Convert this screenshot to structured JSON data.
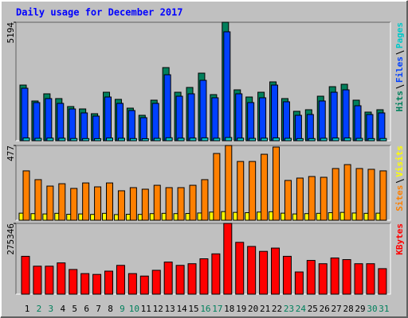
{
  "chart_data": [
    {
      "type": "bar",
      "title": "Daily usage for December 2017",
      "ylim": [
        0,
        5194
      ],
      "yticks": [
        5194
      ],
      "series": [
        {
          "name": "Hits",
          "color": "#00805c",
          "values": [
            2440,
            1743,
            2057,
            1848,
            1499,
            1394,
            1185,
            2126,
            1813,
            1429,
            1115,
            1778,
            3207,
            2126,
            2336,
            2963,
            2022,
            5194,
            2231,
            1917,
            2126,
            2580,
            1848,
            1290,
            1359,
            1952,
            2370,
            2475,
            1778,
            1255,
            1359
          ]
        },
        {
          "name": "Files",
          "color": "#0040ff",
          "values": [
            2301,
            1673,
            1848,
            1638,
            1394,
            1220,
            1081,
            1917,
            1638,
            1325,
            1011,
            1638,
            2893,
            1952,
            2057,
            2649,
            1883,
            4776,
            2057,
            1673,
            1883,
            2440,
            1708,
            1115,
            1150,
            1743,
            2126,
            2231,
            1534,
            1150,
            1220
          ]
        },
        {
          "name": "Pages",
          "color": "#00c8c8",
          "values": [
            120,
            105,
            115,
            110,
            98,
            95,
            92,
            118,
            108,
            96,
            90,
            104,
            130,
            112,
            116,
            125,
            110,
            140,
            114,
            104,
            112,
            122,
            106,
            94,
            96,
            108,
            118,
            120,
            104,
            95,
            98
          ]
        }
      ]
    },
    {
      "type": "bar",
      "ylim": [
        0,
        477
      ],
      "yticks": [
        477
      ],
      "series": [
        {
          "name": "Sites",
          "color": "#ff8000",
          "values": [
            315,
            259,
            218,
            233,
            203,
            238,
            213,
            238,
            188,
            208,
            198,
            223,
            208,
            208,
            223,
            259,
            426,
            477,
            375,
            375,
            421,
            467,
            254,
            269,
            279,
            274,
            330,
            355,
            330,
            325,
            315
          ]
        },
        {
          "name": "Visits",
          "color": "#ffff00",
          "values": [
            45,
            42,
            40,
            44,
            38,
            40,
            37,
            44,
            36,
            38,
            37,
            42,
            44,
            42,
            43,
            46,
            52,
            55,
            50,
            48,
            52,
            54,
            45,
            40,
            42,
            44,
            48,
            50,
            46,
            44,
            45
          ]
        }
      ]
    },
    {
      "type": "bar",
      "ylim": [
        0,
        275346
      ],
      "yticks": [
        275346
      ],
      "categories": [
        "1",
        "2",
        "3",
        "4",
        "5",
        "6",
        "7",
        "8",
        "9",
        "10",
        "11",
        "12",
        "13",
        "14",
        "15",
        "16",
        "17",
        "18",
        "19",
        "20",
        "21",
        "22",
        "23",
        "24",
        "25",
        "26",
        "27",
        "28",
        "29",
        "30",
        "31"
      ],
      "highlight_categories": [
        "2",
        "3",
        "9",
        "10",
        "16",
        "17",
        "23",
        "24",
        "30",
        "31"
      ],
      "highlight_color": "#00805c",
      "series": [
        {
          "name": "KBytes",
          "color": "#ff0000",
          "values": [
            147277,
            108856,
            108856,
            121663,
            96050,
            80042,
            76840,
            89647,
            112058,
            80042,
            70437,
            92849,
            124865,
            112058,
            118461,
            137672,
            156882,
            275346,
            201704,
            185696,
            166487,
            179293,
            147277,
            86445,
            131268,
            118461,
            140873,
            134470,
            118461,
            118461,
            99251
          ]
        }
      ]
    }
  ]
}
